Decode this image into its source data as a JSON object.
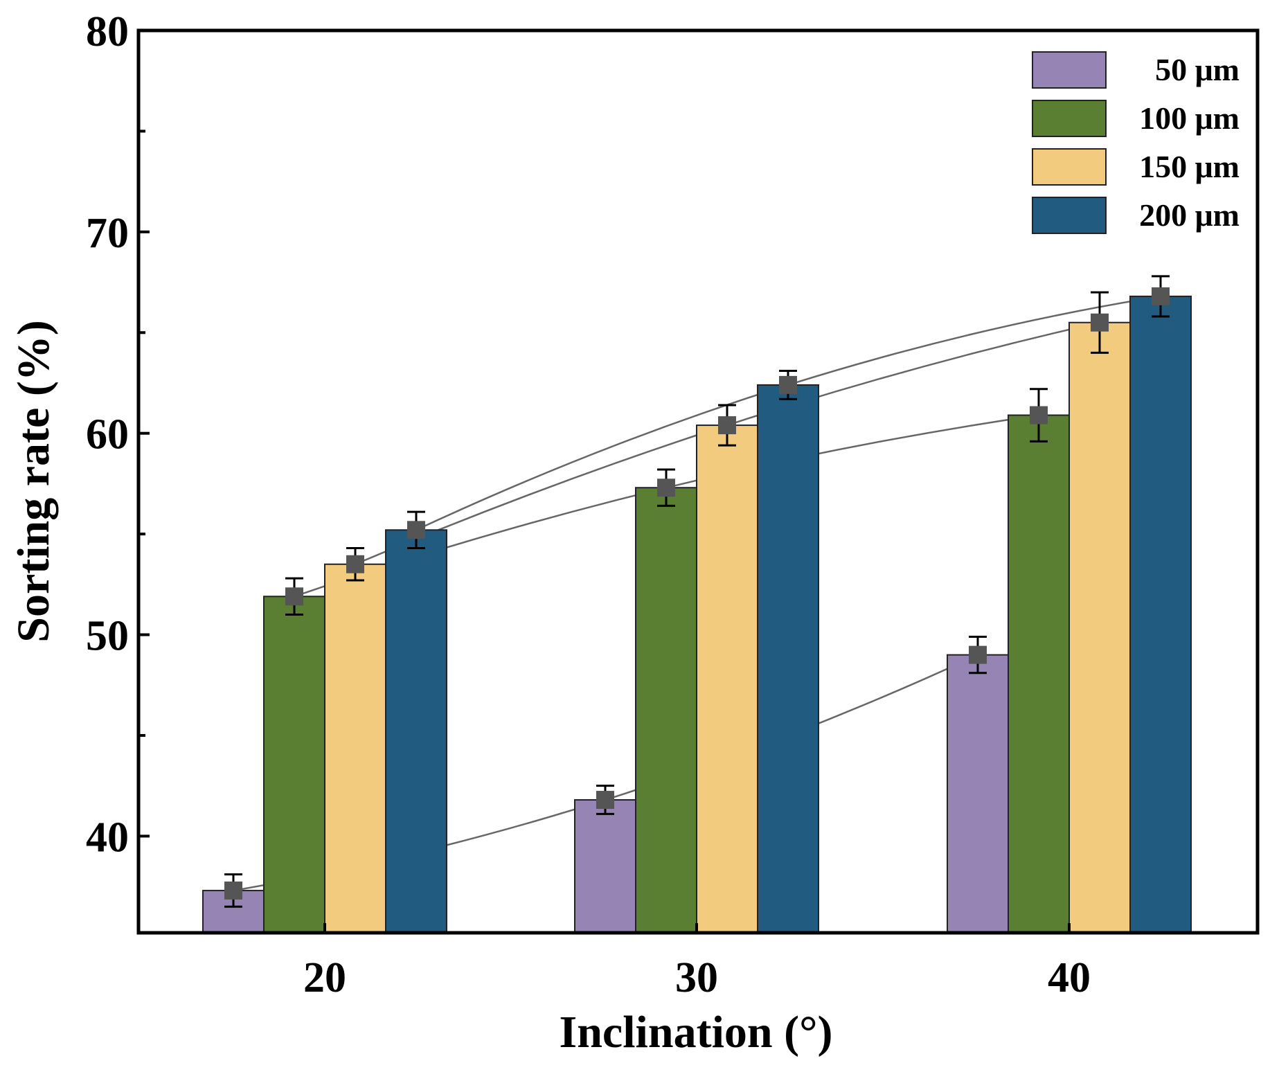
{
  "chart_data": {
    "type": "bar",
    "title": "",
    "xlabel": "Inclination (°)",
    "ylabel": "Sorting rate (%)",
    "categories": [
      "20",
      "30",
      "40"
    ],
    "ylim": [
      35.2,
      80
    ],
    "yticks": [
      40,
      50,
      60,
      70,
      80
    ],
    "grid": false,
    "legend_position": "top-right",
    "series": [
      {
        "name": "50 μm",
        "color": "#9684b4",
        "values": [
          37.3,
          41.8,
          49.0
        ],
        "errors": [
          0.8,
          0.7,
          0.9
        ]
      },
      {
        "name": "100 μm",
        "color": "#5a7f33",
        "values": [
          51.9,
          57.3,
          60.9
        ],
        "errors": [
          0.9,
          0.9,
          1.3
        ]
      },
      {
        "name": "150 μm",
        "color": "#f2cb7e",
        "values": [
          53.5,
          60.4,
          65.5
        ],
        "errors": [
          0.8,
          1.0,
          1.5
        ]
      },
      {
        "name": "200 μm",
        "color": "#225b80",
        "values": [
          55.2,
          62.4,
          66.8
        ],
        "errors": [
          0.9,
          0.7,
          1.0
        ]
      }
    ],
    "trend_lines": true,
    "marker_color": "#555555"
  }
}
